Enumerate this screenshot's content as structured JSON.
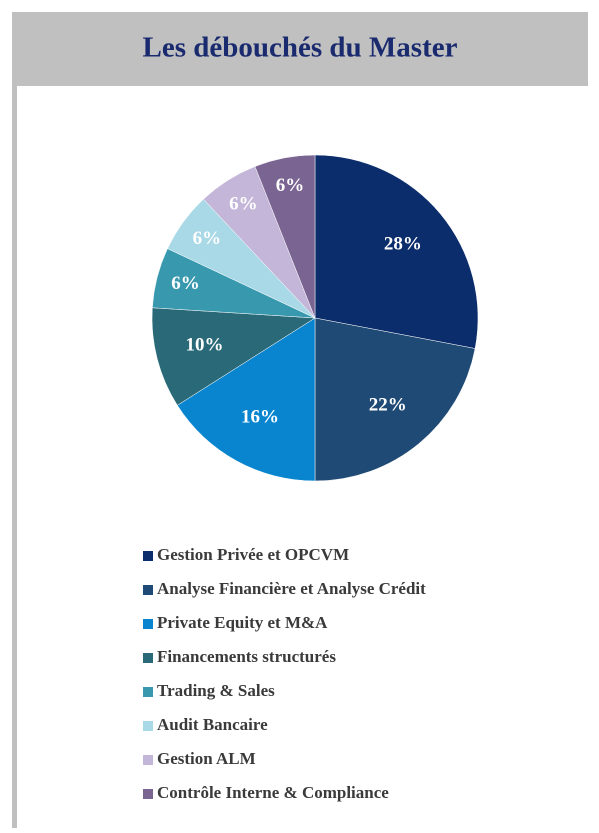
{
  "chart_data": {
    "type": "pie",
    "title": "Les débouchés du Master",
    "categories": [
      "Gestion Privée et OPCVM",
      "Analyse Financière et Analyse Crédit",
      "Private Equity et M&A",
      "Financements structurés",
      "Trading & Sales",
      "Audit Bancaire",
      "Gestion ALM",
      "Contrôle Interne & Compliance"
    ],
    "values": [
      28,
      22,
      16,
      10,
      6,
      6,
      6,
      6
    ],
    "value_labels": [
      "28%",
      "22%",
      "16%",
      "10%",
      "6%",
      "6%",
      "6%",
      "6%"
    ],
    "colors": [
      "#0c2d6b",
      "#1f4a75",
      "#0985cf",
      "#2a6a78",
      "#3899ae",
      "#a9d8e6",
      "#c3b6d8",
      "#7a6592"
    ],
    "legend": "bottom"
  }
}
